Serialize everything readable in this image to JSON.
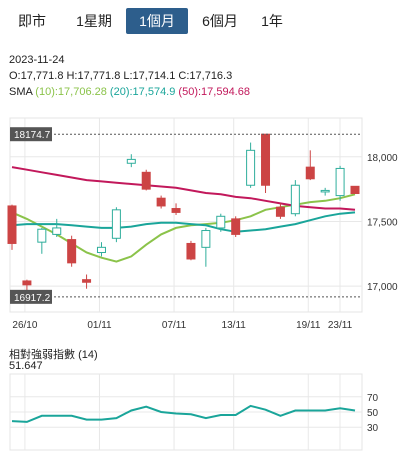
{
  "tabs": [
    {
      "label": "即市",
      "active": false
    },
    {
      "label": "1星期",
      "active": false
    },
    {
      "label": "1個月",
      "active": true
    },
    {
      "label": "6個月",
      "active": false
    },
    {
      "label": "1年",
      "active": false
    }
  ],
  "info": {
    "date": "2023-11-24",
    "ohlc": "O:17,771.8  H:17,771.8  L:17,714.1  C:17,716.3",
    "sma_label": "SMA",
    "sma10": "(10):17,706.28",
    "sma20": "(20):17,574.9",
    "sma50": "(50):17,594.68"
  },
  "colors": {
    "up": "#2fae9c",
    "down": "#cc4444",
    "sma10": "#8bc34a",
    "sma20": "#1aa59a",
    "sma50": "#c2185b",
    "rsi": "#1aa59a",
    "grid": "#e8e8e8"
  },
  "chart_data": [
    {
      "type": "candlestick",
      "x_labels": [
        "26/10",
        "01/11",
        "07/11",
        "13/11",
        "19/11",
        "23/11"
      ],
      "y_ticks": [
        17000,
        17500,
        18000
      ],
      "y_tick_labels": [
        "17,000",
        "17,500",
        "18,000"
      ],
      "ylim": [
        16800,
        18300
      ],
      "grid": true,
      "hi_marker": {
        "label": "18174.7",
        "value": 18174.7
      },
      "lo_marker": {
        "label": "16917.2",
        "value": 16917.2
      },
      "candles": [
        {
          "date": "10/24",
          "o": 17620,
          "h": 17630,
          "l": 17280,
          "c": 17330
        },
        {
          "date": "10/25",
          "o": 17040,
          "h": 17050,
          "l": 16920,
          "c": 17010
        },
        {
          "date": "10/26",
          "o": 17340,
          "h": 17450,
          "l": 17250,
          "c": 17440
        },
        {
          "date": "10/27",
          "o": 17400,
          "h": 17520,
          "l": 17380,
          "c": 17450
        },
        {
          "date": "10/30",
          "o": 17360,
          "h": 17390,
          "l": 17150,
          "c": 17180
        },
        {
          "date": "10/31",
          "o": 17050,
          "h": 17090,
          "l": 16980,
          "c": 17030
        },
        {
          "date": "11/01",
          "o": 17260,
          "h": 17340,
          "l": 17230,
          "c": 17300
        },
        {
          "date": "11/02",
          "o": 17370,
          "h": 17610,
          "l": 17340,
          "c": 17590
        },
        {
          "date": "11/03",
          "o": 17950,
          "h": 18020,
          "l": 17920,
          "c": 17980
        },
        {
          "date": "11/06",
          "o": 17880,
          "h": 17900,
          "l": 17740,
          "c": 17750
        },
        {
          "date": "11/07",
          "o": 17680,
          "h": 17700,
          "l": 17600,
          "c": 17620
        },
        {
          "date": "11/08",
          "o": 17600,
          "h": 17640,
          "l": 17550,
          "c": 17570
        },
        {
          "date": "11/09",
          "o": 17330,
          "h": 17350,
          "l": 17200,
          "c": 17210
        },
        {
          "date": "11/10",
          "o": 17300,
          "h": 17450,
          "l": 17150,
          "c": 17430
        },
        {
          "date": "11/13",
          "o": 17450,
          "h": 17560,
          "l": 17420,
          "c": 17540
        },
        {
          "date": "11/14",
          "o": 17520,
          "h": 17540,
          "l": 17380,
          "c": 17400
        },
        {
          "date": "11/15",
          "o": 17780,
          "h": 18110,
          "l": 17760,
          "c": 18050
        },
        {
          "date": "11/16",
          "o": 18174.7,
          "h": 18174.7,
          "l": 17720,
          "c": 17780
        },
        {
          "date": "11/17",
          "o": 17610,
          "h": 17640,
          "l": 17520,
          "c": 17540
        },
        {
          "date": "11/20",
          "o": 17560,
          "h": 17820,
          "l": 17540,
          "c": 17780
        },
        {
          "date": "11/21",
          "o": 17920,
          "h": 18050,
          "l": 17820,
          "c": 17830
        },
        {
          "date": "11/22",
          "o": 17730,
          "h": 17760,
          "l": 17700,
          "c": 17740
        },
        {
          "date": "11/23",
          "o": 17700,
          "h": 17930,
          "l": 17660,
          "c": 17910
        },
        {
          "date": "11/24",
          "o": 17771.8,
          "h": 17771.8,
          "l": 17714.1,
          "c": 17716.3
        }
      ],
      "series": [
        {
          "name": "(10)",
          "values": [
            17570,
            17520,
            17460,
            17400,
            17330,
            17260,
            17220,
            17190,
            17230,
            17320,
            17400,
            17450,
            17470,
            17480,
            17490,
            17510,
            17540,
            17590,
            17610,
            17630,
            17650,
            17660,
            17680,
            17710
          ]
        },
        {
          "name": "(20)",
          "values": [
            17470,
            17480,
            17480,
            17480,
            17470,
            17460,
            17450,
            17450,
            17460,
            17480,
            17490,
            17490,
            17480,
            17470,
            17440,
            17420,
            17430,
            17440,
            17460,
            17480,
            17510,
            17540,
            17560,
            17570
          ]
        },
        {
          "name": "(50)",
          "values": [
            17920,
            17900,
            17880,
            17860,
            17840,
            17820,
            17810,
            17800,
            17790,
            17780,
            17770,
            17760,
            17740,
            17720,
            17710,
            17690,
            17680,
            17660,
            17640,
            17620,
            17610,
            17600,
            17600,
            17590
          ]
        }
      ]
    },
    {
      "type": "line",
      "title": "相對強弱指數",
      "param": "(14)",
      "current": "51.647",
      "y_ticks": [
        30,
        50,
        70
      ],
      "ylim": [
        0,
        100
      ],
      "values": [
        38,
        37,
        45,
        45,
        45,
        40,
        40,
        42,
        52,
        57,
        50,
        48,
        47,
        42,
        46,
        46,
        58,
        53,
        45,
        52,
        52,
        52,
        55,
        52
      ]
    }
  ]
}
